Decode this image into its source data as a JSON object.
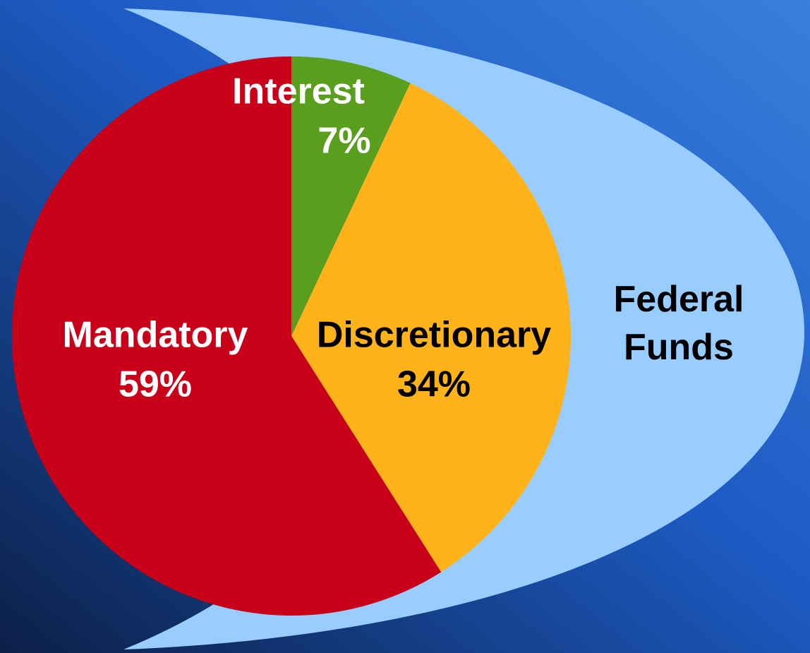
{
  "chart_data": {
    "type": "pie",
    "categories": [
      "Interest",
      "Discretionary",
      "Mandatory"
    ],
    "values": [
      7,
      34,
      59
    ],
    "value_labels": [
      "7%",
      "34%",
      "59%"
    ],
    "colors": [
      "#5a9e1e",
      "#ffb31a",
      "#c8001a"
    ],
    "annotations": [
      "Federal Funds"
    ]
  }
}
